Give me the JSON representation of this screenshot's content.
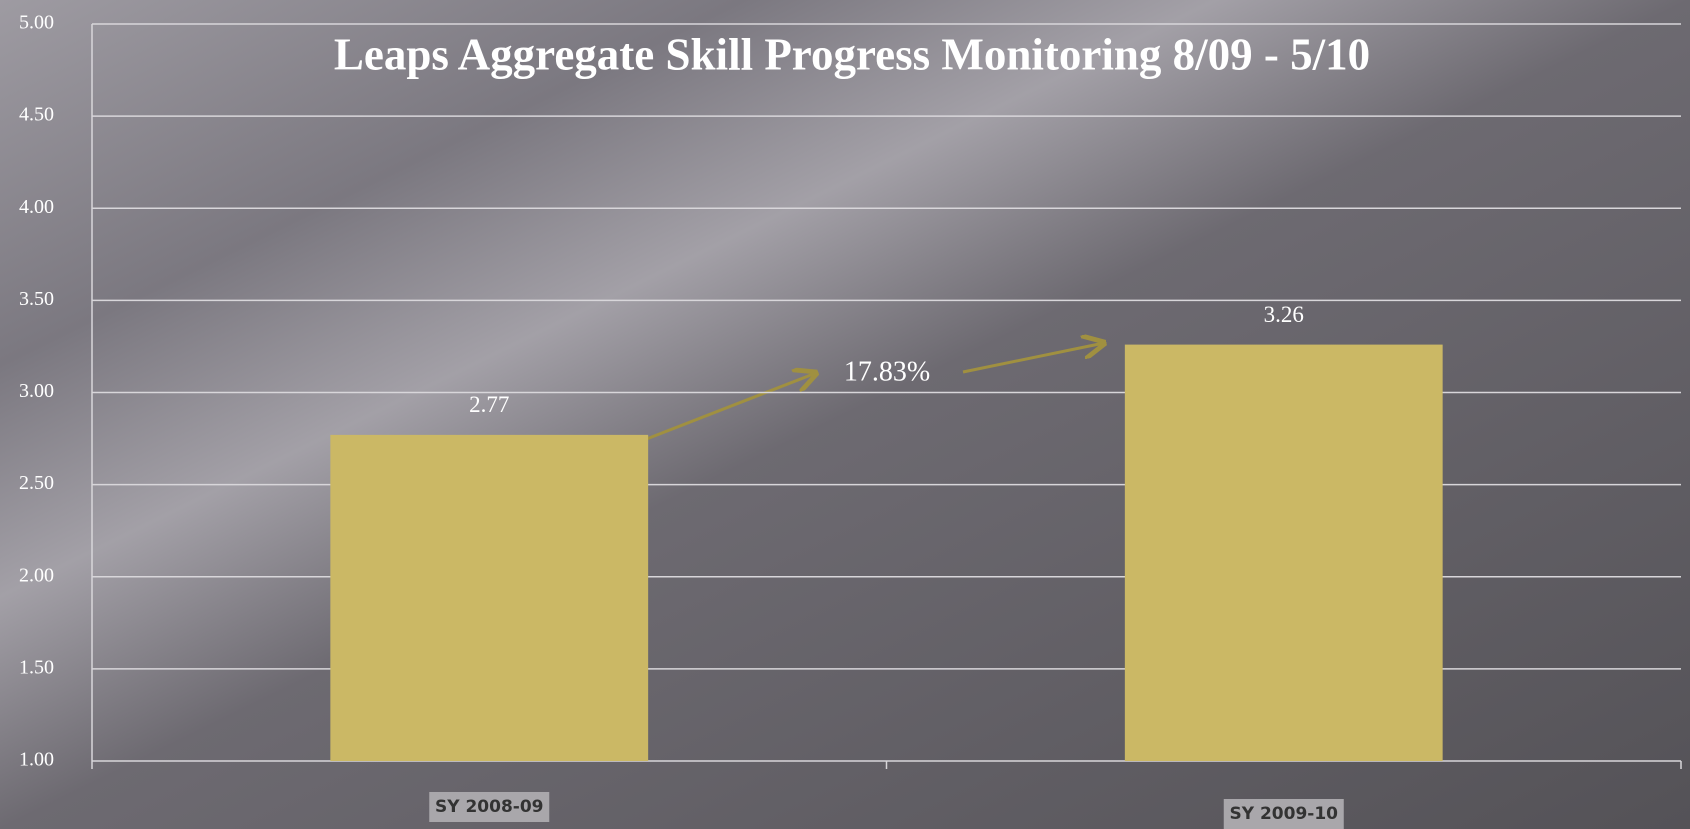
{
  "chart_data": {
    "type": "bar",
    "title": "Leaps Aggregate Skill Progress Monitoring 8/09 - 5/10",
    "categories": [
      "SY 2008-09",
      "SY 2009-10"
    ],
    "values": [
      2.77,
      3.26
    ],
    "color": "#cbb865",
    "ylim": [
      1,
      5
    ],
    "yticks": [
      {
        "value": 1,
        "label": "1.00"
      },
      {
        "value": 1.5,
        "label": "1.50"
      },
      {
        "value": 2,
        "label": "2.00"
      },
      {
        "value": 2.5,
        "label": "2.50"
      },
      {
        "value": 3,
        "label": "3.00"
      },
      {
        "value": 3.5,
        "label": "3.50"
      },
      {
        "value": 4,
        "label": "4.00"
      },
      {
        "value": 4.5,
        "label": "4.50"
      },
      {
        "value": 5,
        "label": "5.00"
      }
    ],
    "grid": true,
    "annotation": "17.83%"
  }
}
